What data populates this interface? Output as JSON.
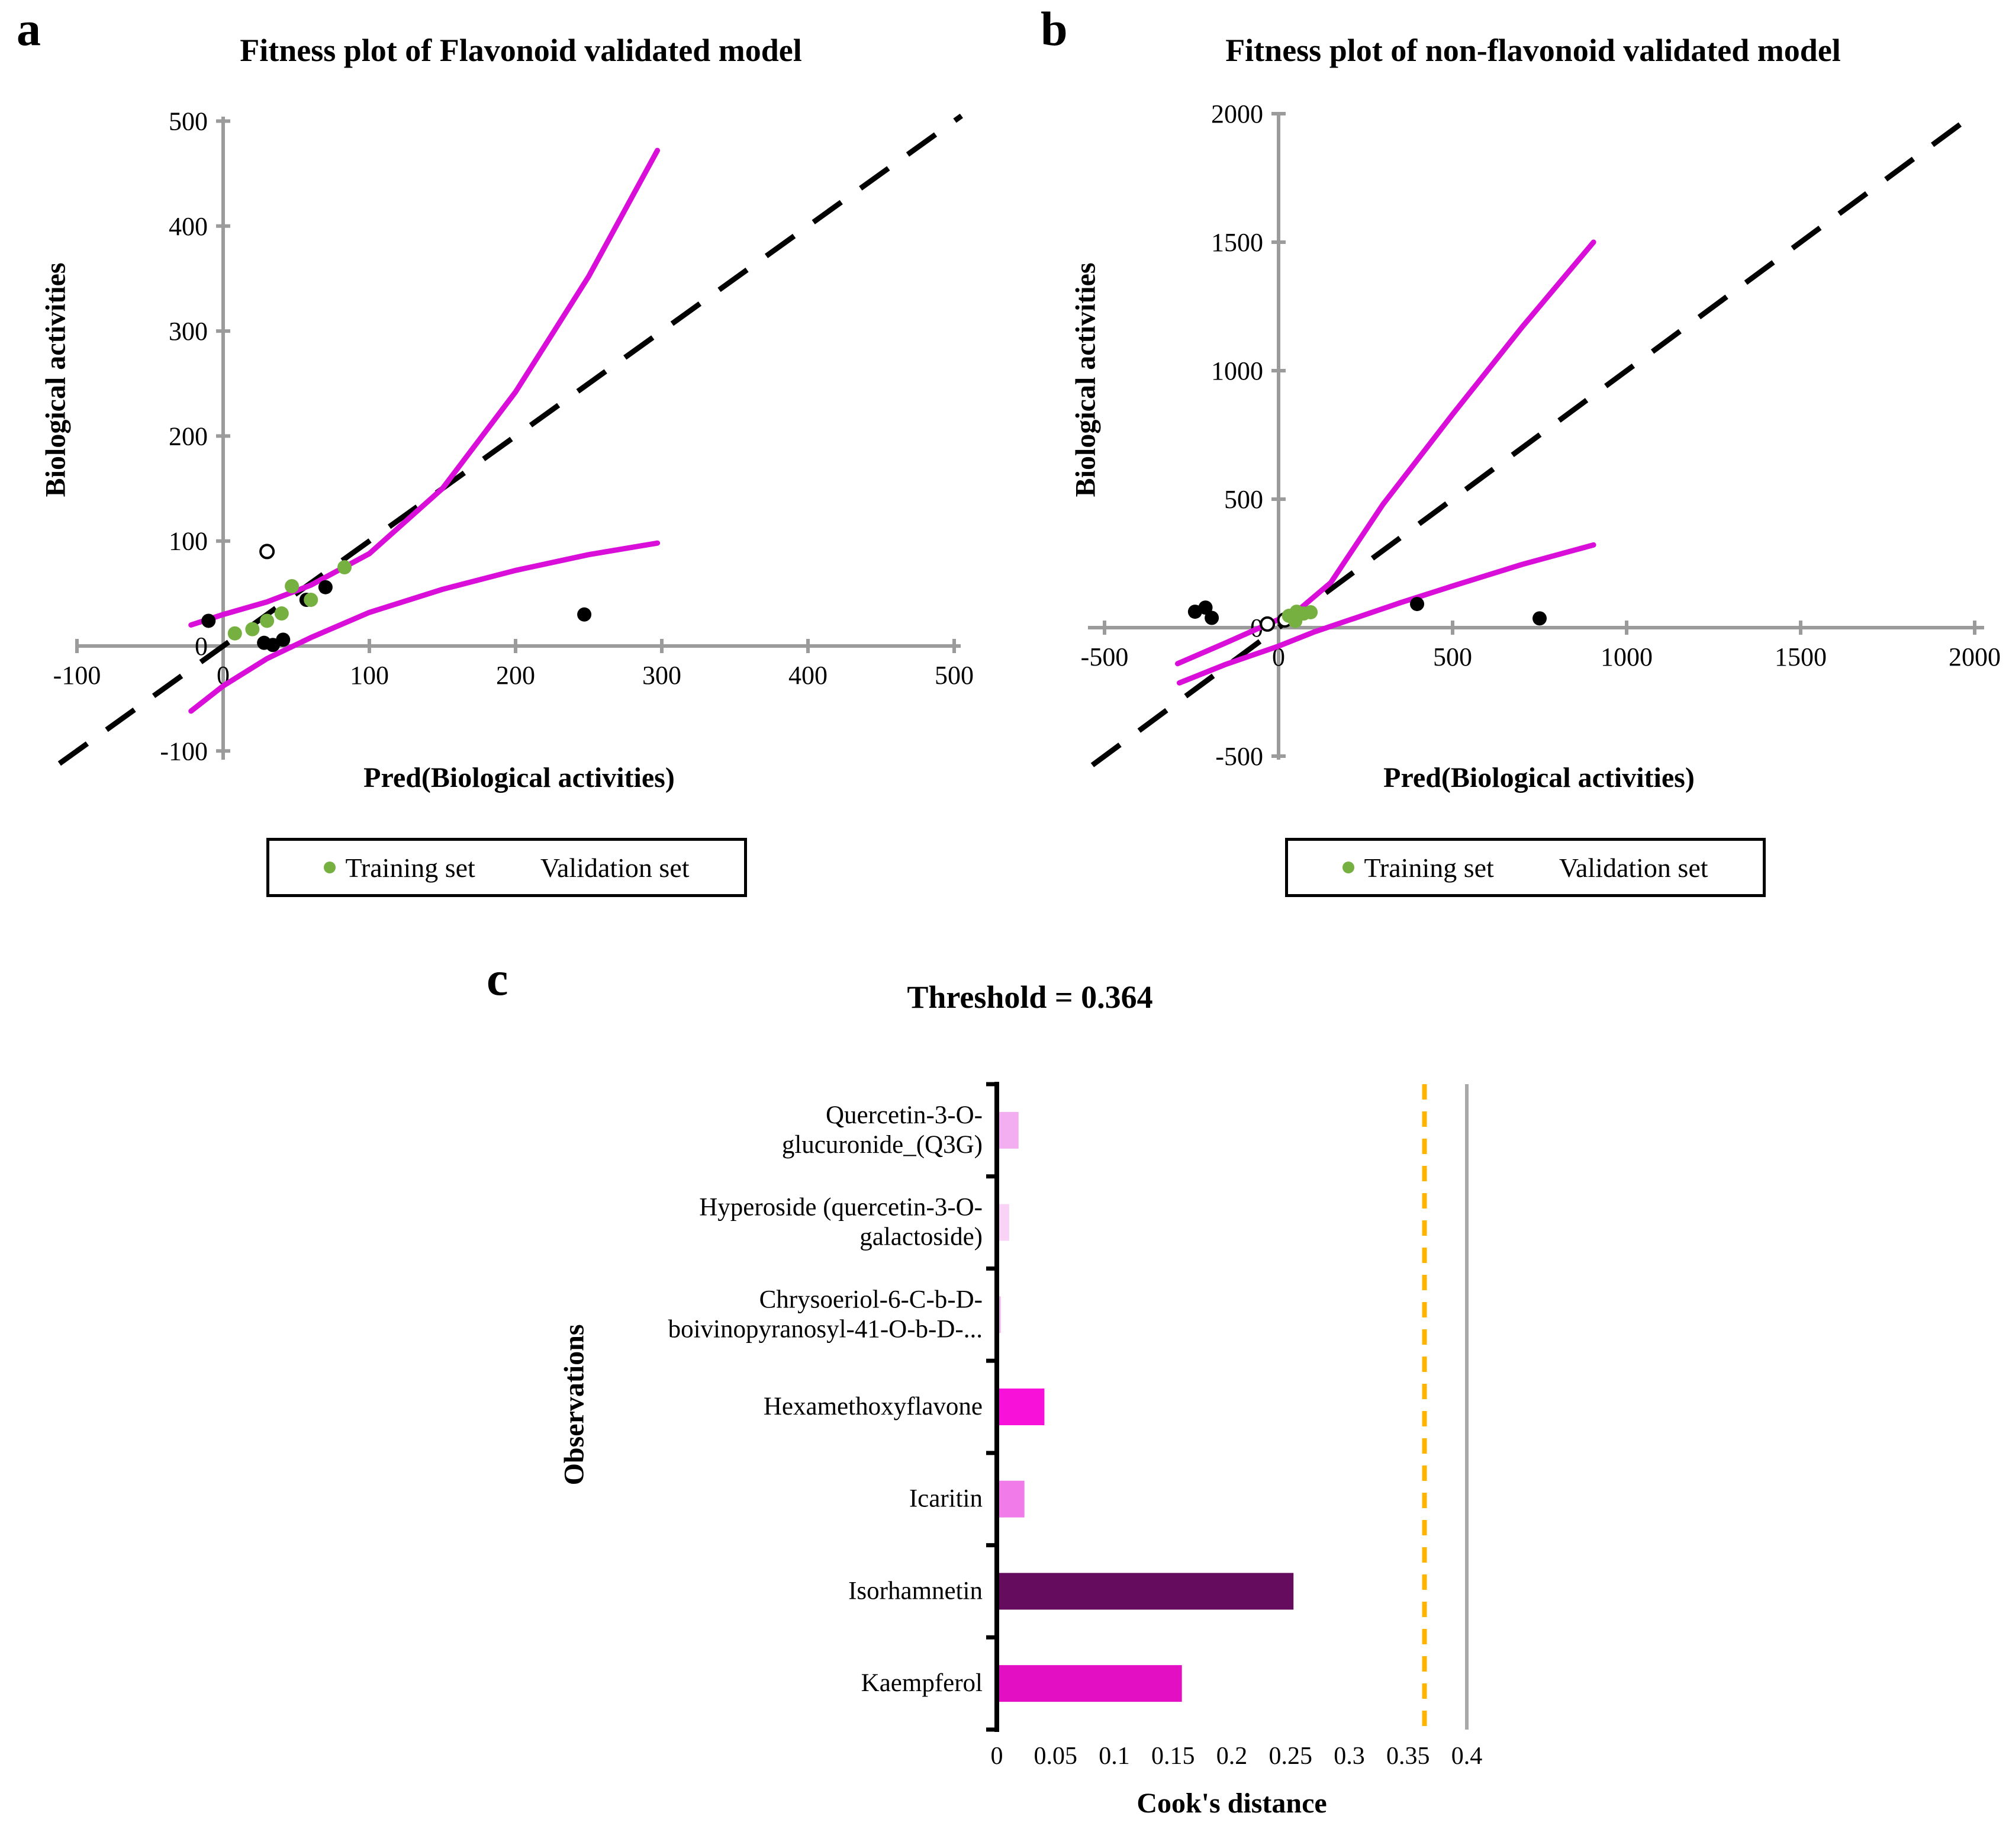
{
  "panel_a": {
    "letter": "a",
    "title": "Fitness plot of Flavonoid validated model",
    "x_label": "Pred(Biological activities)",
    "y_label": "Biological activities",
    "legend": {
      "training": "Training set",
      "validation": "Validation set"
    }
  },
  "panel_b": {
    "letter": "b",
    "title": "Fitness plot of non-flavonoid validated model",
    "x_label": "Pred(Biological activities)",
    "y_label": "Biological activities",
    "legend": {
      "training": "Training set",
      "validation": "Validation set"
    }
  },
  "panel_c": {
    "letter": "c",
    "title": "Threshold = 0.364",
    "x_label": "Cook's distance",
    "y_label": "Observations"
  },
  "colors": {
    "axis_gray": "#9b9b9b",
    "band_magenta": "#d90fd9",
    "training_green": "#76b041",
    "validation_black": "#000000",
    "identity_black": "#000000",
    "threshold_orange": "#ffb400",
    "boundary_gray": "#a8a8a8",
    "axis_black": "#000000"
  },
  "chart_data": [
    {
      "id": "panel_a",
      "type": "scatter",
      "title": "Fitness plot of Flavonoid validated model",
      "xlabel": "Pred(Biological activities)",
      "ylabel": "Biological activities",
      "xlim": [
        -100,
        500
      ],
      "ylim": [
        -100,
        500
      ],
      "xticks": [
        "-100",
        "0",
        "100",
        "200",
        "300",
        "400",
        "500"
      ],
      "yticks": [
        "-100",
        "0",
        "100",
        "200",
        "300",
        "400",
        "500"
      ],
      "grid": false,
      "legend": [
        "Training set",
        "Validation set"
      ],
      "identity_line": {
        "from": [
          -112,
          -112
        ],
        "to": [
          505,
          505
        ]
      },
      "confidence_band": {
        "upper": [
          [
            -22,
            20
          ],
          [
            0,
            30
          ],
          [
            30,
            42
          ],
          [
            60,
            58
          ],
          [
            100,
            88
          ],
          [
            150,
            150
          ],
          [
            200,
            242
          ],
          [
            250,
            352
          ],
          [
            297,
            472
          ]
        ],
        "lower": [
          [
            -22,
            -62
          ],
          [
            0,
            -38
          ],
          [
            30,
            -12
          ],
          [
            60,
            8
          ],
          [
            100,
            32
          ],
          [
            150,
            54
          ],
          [
            200,
            72
          ],
          [
            250,
            87
          ],
          [
            297,
            98
          ]
        ]
      },
      "series": [
        {
          "name": "Validation set",
          "marker": "filled",
          "color_key": "validation_black",
          "points": [
            [
              -10,
              24
            ],
            [
              28,
              3
            ],
            [
              34,
              1
            ],
            [
              41,
              6
            ],
            [
              57,
              44
            ],
            [
              70,
              56
            ],
            [
              247,
              30
            ]
          ]
        },
        {
          "name": "Validation set",
          "marker": "open",
          "color_key": "validation_black",
          "points": [
            [
              30,
              90
            ]
          ]
        },
        {
          "name": "Training set",
          "marker": "filled",
          "color_key": "training_green",
          "points": [
            [
              8,
              12
            ],
            [
              20,
              16
            ],
            [
              30,
              24
            ],
            [
              40,
              31
            ],
            [
              47,
              57
            ],
            [
              60,
              44
            ],
            [
              83,
              75
            ]
          ]
        }
      ]
    },
    {
      "id": "panel_b",
      "type": "scatter",
      "title": "Fitness plot of non-flavonoid validated model",
      "xlabel": "Pred(Biological activities)",
      "ylabel": "Biological activities",
      "xlim": [
        -500,
        2000
      ],
      "ylim": [
        -500,
        2000
      ],
      "xticks": [
        "-500",
        "0",
        "500",
        "1000",
        "1500",
        "2000"
      ],
      "yticks": [
        "-500",
        "0",
        "500",
        "1000",
        "1500",
        "2000"
      ],
      "grid": false,
      "legend": [
        "Training set",
        "Validation set"
      ],
      "identity_line": {
        "from": [
          -535,
          -535
        ],
        "to": [
          2005,
          2005
        ]
      },
      "confidence_band": {
        "upper": [
          [
            -290,
            -140
          ],
          [
            -150,
            -58
          ],
          [
            -50,
            2
          ],
          [
            0,
            32
          ],
          [
            60,
            72
          ],
          [
            150,
            175
          ],
          [
            300,
            480
          ],
          [
            500,
            830
          ],
          [
            700,
            1170
          ],
          [
            905,
            1500
          ]
        ],
        "lower": [
          [
            -285,
            -215
          ],
          [
            -150,
            -142
          ],
          [
            0,
            -72
          ],
          [
            100,
            -18
          ],
          [
            200,
            28
          ],
          [
            350,
            97
          ],
          [
            500,
            162
          ],
          [
            700,
            246
          ],
          [
            905,
            322
          ]
        ]
      },
      "series": [
        {
          "name": "Validation set",
          "marker": "filled",
          "color_key": "validation_black",
          "points": [
            [
              -240,
              62
            ],
            [
              -210,
              78
            ],
            [
              -192,
              38
            ],
            [
              398,
              92
            ],
            [
              750,
              36
            ]
          ]
        },
        {
          "name": "Validation set",
          "marker": "open",
          "color_key": "validation_black",
          "points": [
            [
              -32,
              14
            ],
            [
              18,
              30
            ]
          ]
        },
        {
          "name": "Training set",
          "marker": "filled",
          "color_key": "training_green",
          "points": [
            [
              30,
              46
            ],
            [
              52,
              62
            ],
            [
              72,
              55
            ],
            [
              48,
              26
            ],
            [
              92,
              60
            ]
          ]
        }
      ]
    },
    {
      "id": "panel_c",
      "type": "bar",
      "orientation": "horizontal",
      "title": "Threshold = 0.364",
      "xlabel": "Cook's distance",
      "ylabel": "Observations",
      "threshold": 0.364,
      "xlim": [
        0,
        0.4
      ],
      "xticks": [
        "0",
        "0.05",
        "0.1",
        "0.15",
        "0.2",
        "0.25",
        "0.3",
        "0.35",
        "0.4"
      ],
      "categories": [
        {
          "label": "Quercetin-3-O-glucuronide_(Q3G)",
          "label_lines": [
            "Quercetin-3-O-",
            "glucuronide_(Q3G)"
          ],
          "value": 0.017,
          "color": "#f2aef1"
        },
        {
          "label": "Hyperoside (quercetin-3-O-galactoside)",
          "label_lines": [
            "Hyperoside (quercetin-3-O-",
            "galactoside)"
          ],
          "value": 0.009,
          "color": "#f8d3f6"
        },
        {
          "label": "Chrysoeriol-6-C-b-D-boivinopyranosyl-41-O-b-D-...",
          "label_lines": [
            "Chrysoeriol-6-C-b-D-",
            "boivinopyranosyl-41-O-b-D-..."
          ],
          "value": 0.002,
          "color": "#efc0ee"
        },
        {
          "label": "Hexamethoxyflavone",
          "label_lines": [
            "Hexamethoxyflavone"
          ],
          "value": 0.039,
          "color": "#f711d9"
        },
        {
          "label": "Icaritin",
          "label_lines": [
            "Icaritin"
          ],
          "value": 0.022,
          "color": "#f07be9"
        },
        {
          "label": "Isorhamnetin",
          "label_lines": [
            "Isorhamnetin"
          ],
          "value": 0.251,
          "color": "#650c5e"
        },
        {
          "label": "Kaempferol",
          "label_lines": [
            "Kaempferol"
          ],
          "value": 0.156,
          "color": "#e30fc3"
        }
      ]
    }
  ]
}
